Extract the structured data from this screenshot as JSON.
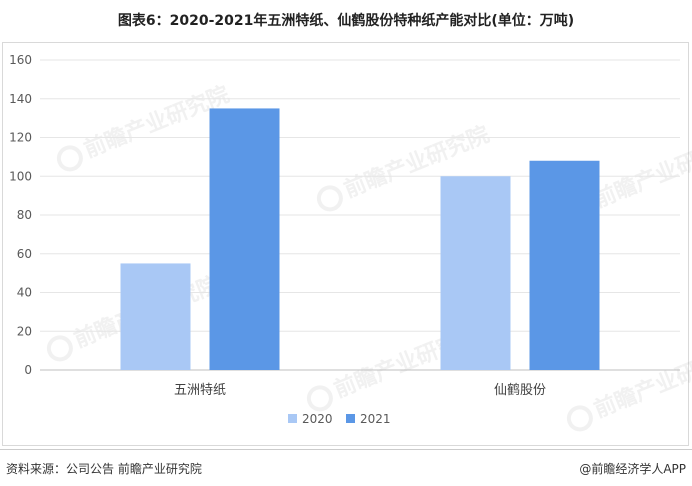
{
  "header": {
    "title": "图表6：2020-2021年五洲特纸、仙鹤股份特种纸产能对比(单位：万吨)"
  },
  "footer": {
    "source": "资料来源：公司公告 前瞻产业研究院",
    "brand": "@前瞻经济学人APP"
  },
  "watermark": {
    "text": "前瞻产业研究院"
  },
  "colors": {
    "series_2020": "#a9c8f5",
    "series_2021": "#5b97e6",
    "grid": "#e6e6e6",
    "axis": "#bfbfbf",
    "text": "#595959"
  },
  "chart_data": {
    "type": "bar",
    "title": "图表6：2020-2021年五洲特纸、仙鹤股份特种纸产能对比(单位：万吨)",
    "categories": [
      "五洲特纸",
      "仙鹤股份"
    ],
    "series": [
      {
        "name": "2020",
        "values": [
          55,
          100
        ]
      },
      {
        "name": "2021",
        "values": [
          135,
          108
        ]
      }
    ],
    "ylim": [
      0,
      160
    ],
    "yticks": [
      0,
      20,
      40,
      60,
      80,
      100,
      120,
      140,
      160
    ],
    "grid": true,
    "legend": "bottom-center",
    "xlabel": "",
    "ylabel": ""
  }
}
